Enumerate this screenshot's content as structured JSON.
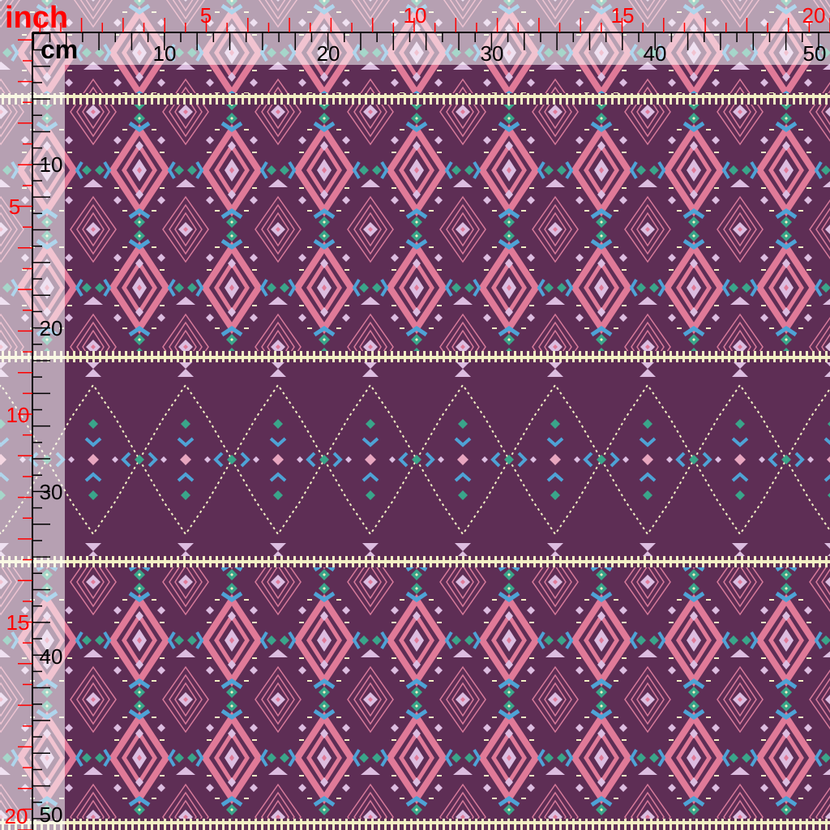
{
  "ruler": {
    "inch_unit": "inch",
    "cm_unit": "cm",
    "top_inch_labels": [
      "5",
      "10",
      "15",
      "20"
    ],
    "top_cm_labels": [
      "10",
      "20",
      "30",
      "40",
      "50"
    ],
    "left_inch_labels": [
      "5",
      "10",
      "15",
      "20"
    ],
    "left_cm_labels": [
      "10",
      "20",
      "30",
      "40",
      "50"
    ]
  },
  "colors": {
    "fabric_ground": "#5e2e55",
    "pink": "#e07a98",
    "lilac": "#dcbde0",
    "blue": "#4ea3d6",
    "teal": "#3aa58a",
    "cream": "#f2efc4",
    "inch_ruler": "#ff0000",
    "cm_ruler": "#000000"
  }
}
